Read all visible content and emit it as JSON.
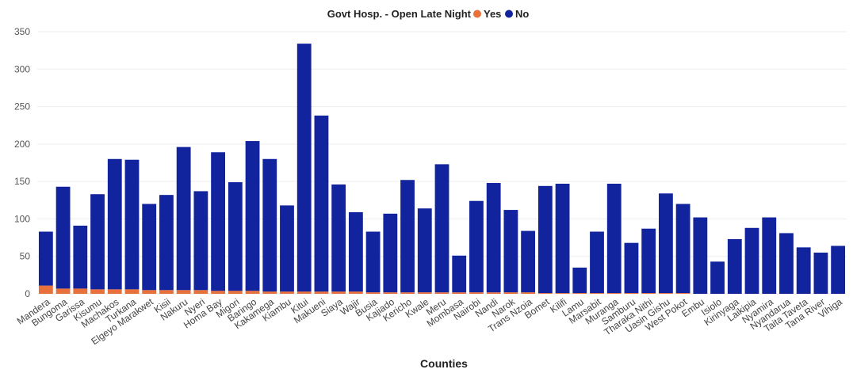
{
  "chart_data": {
    "type": "bar",
    "stacked": true,
    "legend_title": "Govt Hosp. - Open Late Night",
    "legend_position": "top-center",
    "xlabel": "Counties",
    "ylabel": "",
    "ylim": [
      0,
      350
    ],
    "yticks": [
      0,
      50,
      100,
      150,
      200,
      250,
      300,
      350
    ],
    "grid": true,
    "categories": [
      "Mandera",
      "Bungoma",
      "Garissa",
      "Kisumu",
      "Machakos",
      "Turkana",
      "Elgeyo Marakwet",
      "Kisii",
      "Nakuru",
      "Nyeri",
      "Homa Bay",
      "Migori",
      "Baringo",
      "Kakamega",
      "Kiambu",
      "Kitui",
      "Makueni",
      "Siaya",
      "Wajir",
      "Busia",
      "Kajiado",
      "Kericho",
      "Kwale",
      "Meru",
      "Mombasa",
      "Nairobi",
      "Nandi",
      "Narok",
      "Trans Nzoia",
      "Bomet",
      "Kilifi",
      "Lamu",
      "Marsabit",
      "Muranga",
      "Samburu",
      "Tharaka Nithi",
      "Uasin Gishu",
      "West Pokot",
      "Embu",
      "Isiolo",
      "Kirinyaga",
      "Laikipia",
      "Nyamira",
      "Nyandarua",
      "Taita Taveta",
      "Tana River",
      "Vihiga"
    ],
    "series": [
      {
        "name": "Yes",
        "color": "#e8703a",
        "values": [
          11,
          7,
          7,
          6,
          6,
          6,
          5,
          5,
          5,
          5,
          4,
          4,
          4,
          3,
          3,
          3,
          3,
          3,
          3,
          2,
          2,
          2,
          2,
          2,
          2,
          2,
          2,
          2,
          2,
          1,
          1,
          1,
          1,
          1,
          1,
          1,
          1,
          1,
          0,
          0,
          0,
          0,
          0,
          0,
          0,
          0,
          0
        ]
      },
      {
        "name": "No",
        "color": "#12239e",
        "values": [
          72,
          136,
          84,
          127,
          174,
          173,
          115,
          127,
          191,
          132,
          185,
          145,
          200,
          177,
          115,
          331,
          235,
          143,
          106,
          81,
          105,
          150,
          112,
          171,
          49,
          122,
          146,
          110,
          82,
          143,
          146,
          34,
          82,
          146,
          67,
          86,
          133,
          119,
          102,
          43,
          73,
          88,
          102,
          81,
          62,
          55,
          64
        ]
      }
    ]
  }
}
